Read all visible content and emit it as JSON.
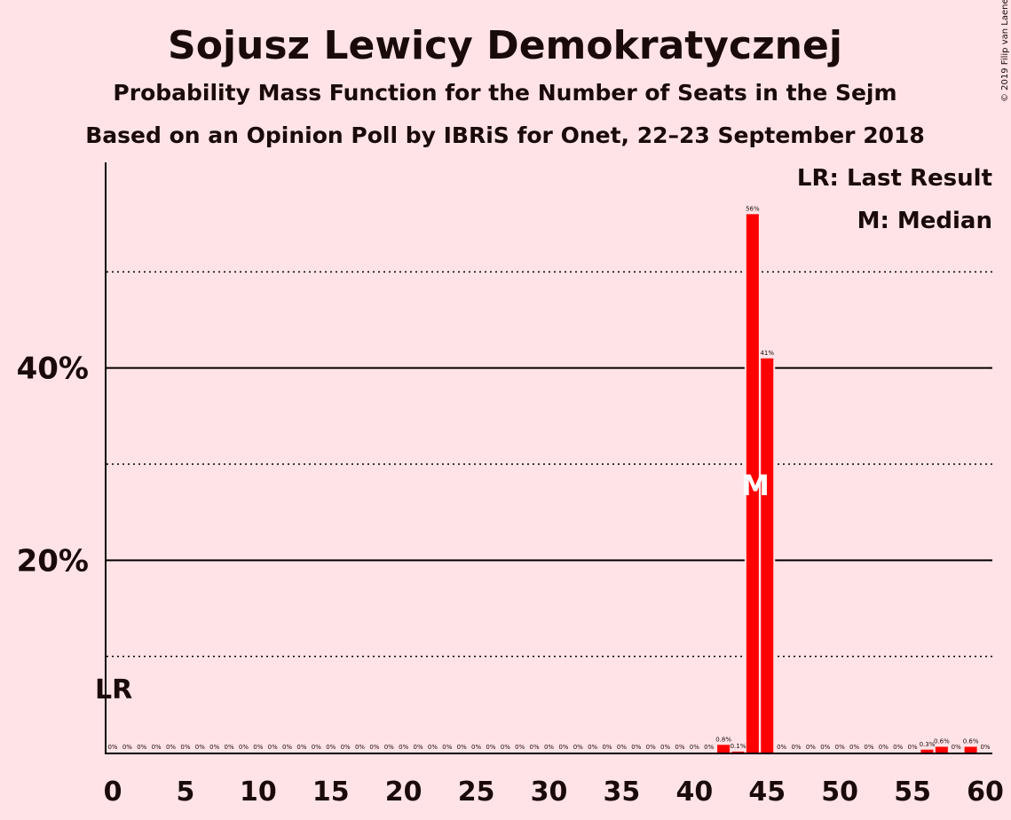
{
  "chart_data": {
    "type": "bar",
    "title": "Sojusz Lewicy Demokratycznej",
    "subtitle1": "Probability Mass Function for the Number of Seats in the Sejm",
    "subtitle2": "Based on an Opinion Poll by IBRiS for Onet, 22–23 September 2018",
    "copyright": "© 2019 Filip van Laenen",
    "legend": [
      "LR: Last Result",
      "M: Median"
    ],
    "legend_position": "top-right",
    "last_result_marker": "LR",
    "median_marker": "M",
    "last_result_seat": 0,
    "median_seat": 44,
    "x_ticks": [
      "0",
      "5",
      "10",
      "15",
      "20",
      "25",
      "30",
      "35",
      "40",
      "45",
      "50",
      "55",
      "60"
    ],
    "y_ticks": [
      "20%",
      "40%"
    ],
    "xlim": [
      0,
      60
    ],
    "ylim": [
      0,
      60
    ],
    "bar_color": "#FF0000",
    "x": [
      0,
      1,
      2,
      3,
      4,
      5,
      6,
      7,
      8,
      9,
      10,
      11,
      12,
      13,
      14,
      15,
      16,
      17,
      18,
      19,
      20,
      21,
      22,
      23,
      24,
      25,
      26,
      27,
      28,
      29,
      30,
      31,
      32,
      33,
      34,
      35,
      36,
      37,
      38,
      39,
      40,
      41,
      42,
      43,
      44,
      45,
      46,
      47,
      48,
      49,
      50,
      51,
      52,
      53,
      54,
      55,
      56,
      57,
      58,
      59,
      60
    ],
    "values": [
      0,
      0,
      0,
      0,
      0,
      0,
      0,
      0,
      0,
      0,
      0,
      0,
      0,
      0,
      0,
      0,
      0,
      0,
      0,
      0,
      0,
      0,
      0,
      0,
      0,
      0,
      0,
      0,
      0,
      0,
      0,
      0,
      0,
      0,
      0,
      0,
      0,
      0,
      0,
      0,
      0,
      0,
      0.8,
      0.1,
      56,
      41,
      0,
      0,
      0,
      0,
      0,
      0,
      0,
      0,
      0,
      0,
      0.3,
      0.6,
      0,
      0.6,
      0
    ],
    "labels": [
      "0%",
      "0%",
      "0%",
      "0%",
      "0%",
      "0%",
      "0%",
      "0%",
      "0%",
      "0%",
      "0%",
      "0%",
      "0%",
      "0%",
      "0%",
      "0%",
      "0%",
      "0%",
      "0%",
      "0%",
      "0%",
      "0%",
      "0%",
      "0%",
      "0%",
      "0%",
      "0%",
      "0%",
      "0%",
      "0%",
      "0%",
      "0%",
      "0%",
      "0%",
      "0%",
      "0%",
      "0%",
      "0%",
      "0%",
      "0%",
      "0%",
      "0%",
      "0.8%",
      "0.1%",
      "56%",
      "41%",
      "0%",
      "0%",
      "0%",
      "0%",
      "0%",
      "0%",
      "0%",
      "0%",
      "0%",
      "0%",
      "0.3%",
      "0.6%",
      "0%",
      "0.6%",
      "0%"
    ]
  }
}
